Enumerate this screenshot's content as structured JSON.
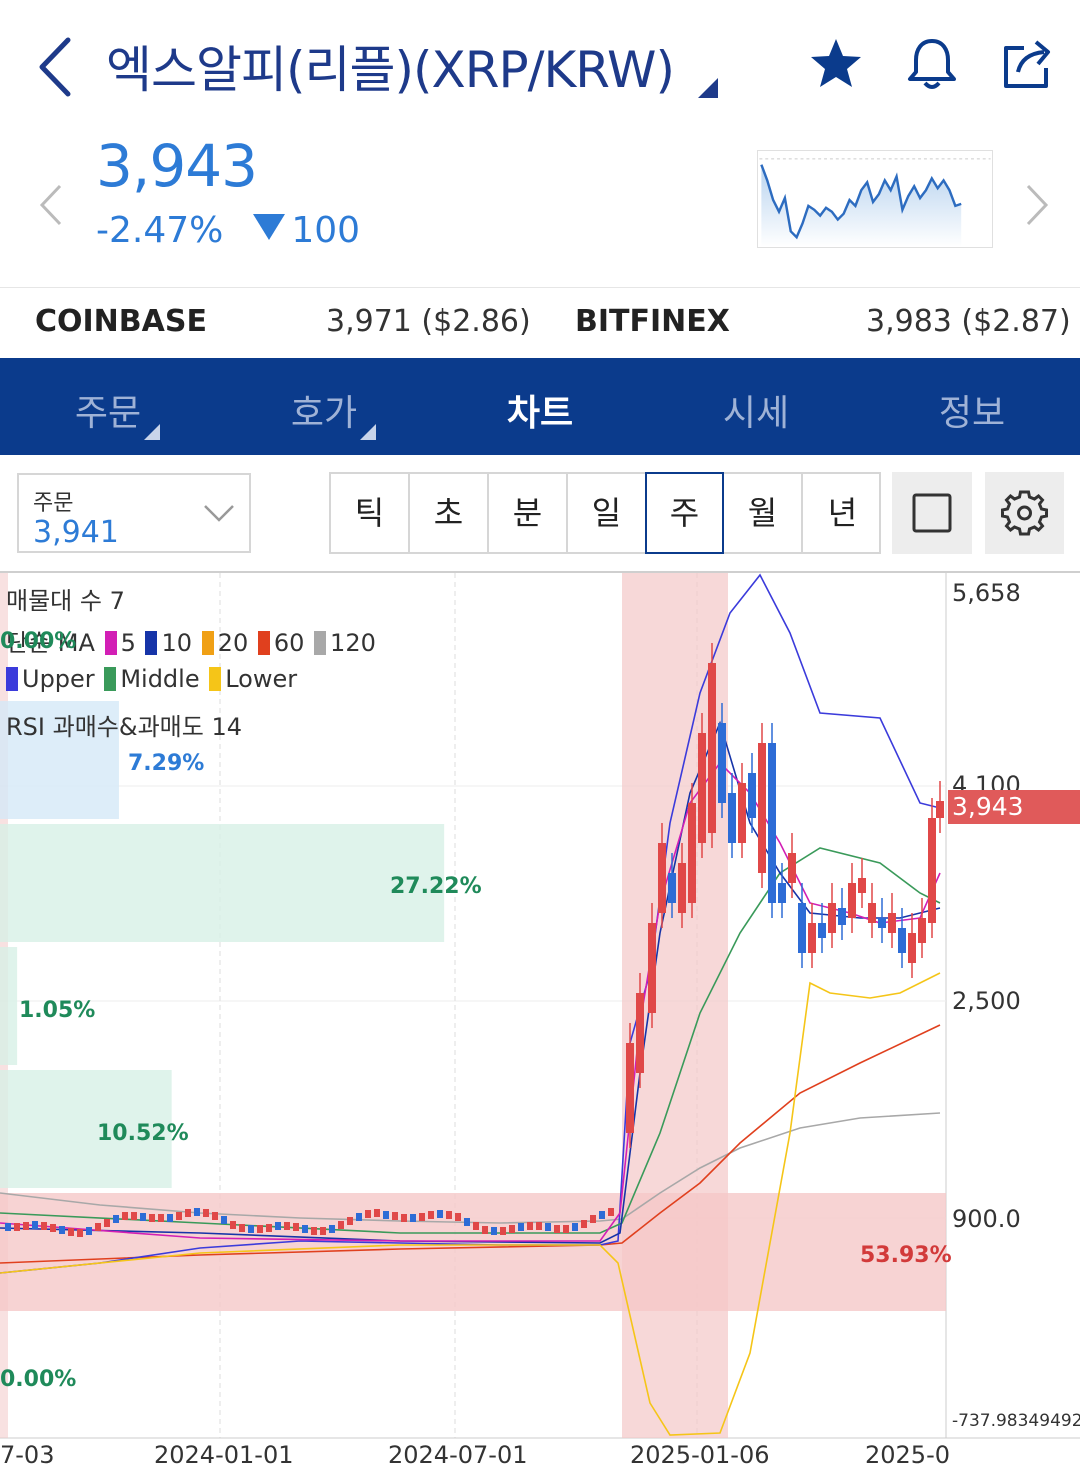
{
  "header": {
    "title": "엑스알피(리플)(XRP/KRW)",
    "back_icon": "chevron-left-icon",
    "icons": [
      "star-icon",
      "bell-icon",
      "share-icon"
    ]
  },
  "quote": {
    "price": "3,943",
    "change_pct": "-2.47%",
    "change_abs": "100"
  },
  "exchanges": [
    {
      "name": "COINBASE",
      "value": "3,971 ($2.86)"
    },
    {
      "name": "BITFINEX",
      "value": "3,983 ($2.87)"
    }
  ],
  "tabs": [
    {
      "label": "주문",
      "active": false
    },
    {
      "label": "호가",
      "active": false
    },
    {
      "label": "차트",
      "active": true
    },
    {
      "label": "시세",
      "active": false
    },
    {
      "label": "정보",
      "active": false
    }
  ],
  "order_select": {
    "label": "주문",
    "value": "3,941"
  },
  "periods": [
    "틱",
    "초",
    "분",
    "일",
    "주",
    "월",
    "년"
  ],
  "active_period": "주",
  "chart_legend": {
    "volume_profile": "매물대 수 7",
    "ma_prefix": "단순 MA",
    "ma": [
      {
        "label": "5",
        "color": "#d21fb5"
      },
      {
        "label": "10",
        "color": "#1634a8"
      },
      {
        "label": "20",
        "color": "#f0a015"
      },
      {
        "label": "60",
        "color": "#e0401e"
      },
      {
        "label": "120",
        "color": "#a8a8a8"
      }
    ],
    "bollinger": [
      {
        "label": "Upper",
        "color": "#3b3bdb"
      },
      {
        "label": "Middle",
        "color": "#3a9a5a"
      },
      {
        "label": "Lower",
        "color": "#f5c518"
      }
    ],
    "rsi": "RSI 과매수&과매도 14"
  },
  "chart_data": {
    "type": "candlestick",
    "y_ticks": [
      "5,658",
      "4,100",
      "2,500",
      "900.0",
      "-737.98349492"
    ],
    "x_ticks": [
      "7-03",
      "2024-01-01",
      "2024-07-01",
      "2025-01-06",
      "2025-0"
    ],
    "last_price_tag": "3,943",
    "volume_profile": [
      {
        "label": "0.00%",
        "pct": 0.0
      },
      {
        "label": "7.29%",
        "pct": 7.29
      },
      {
        "label": "27.22%",
        "pct": 27.22
      },
      {
        "label": "1.05%",
        "pct": 1.05
      },
      {
        "label": "10.52%",
        "pct": 10.52
      },
      {
        "label": "53.93%",
        "pct": 53.93
      },
      {
        "label": "0.00%",
        "pct": 0.0
      }
    ],
    "highlighted_pattern_bands": 2
  }
}
